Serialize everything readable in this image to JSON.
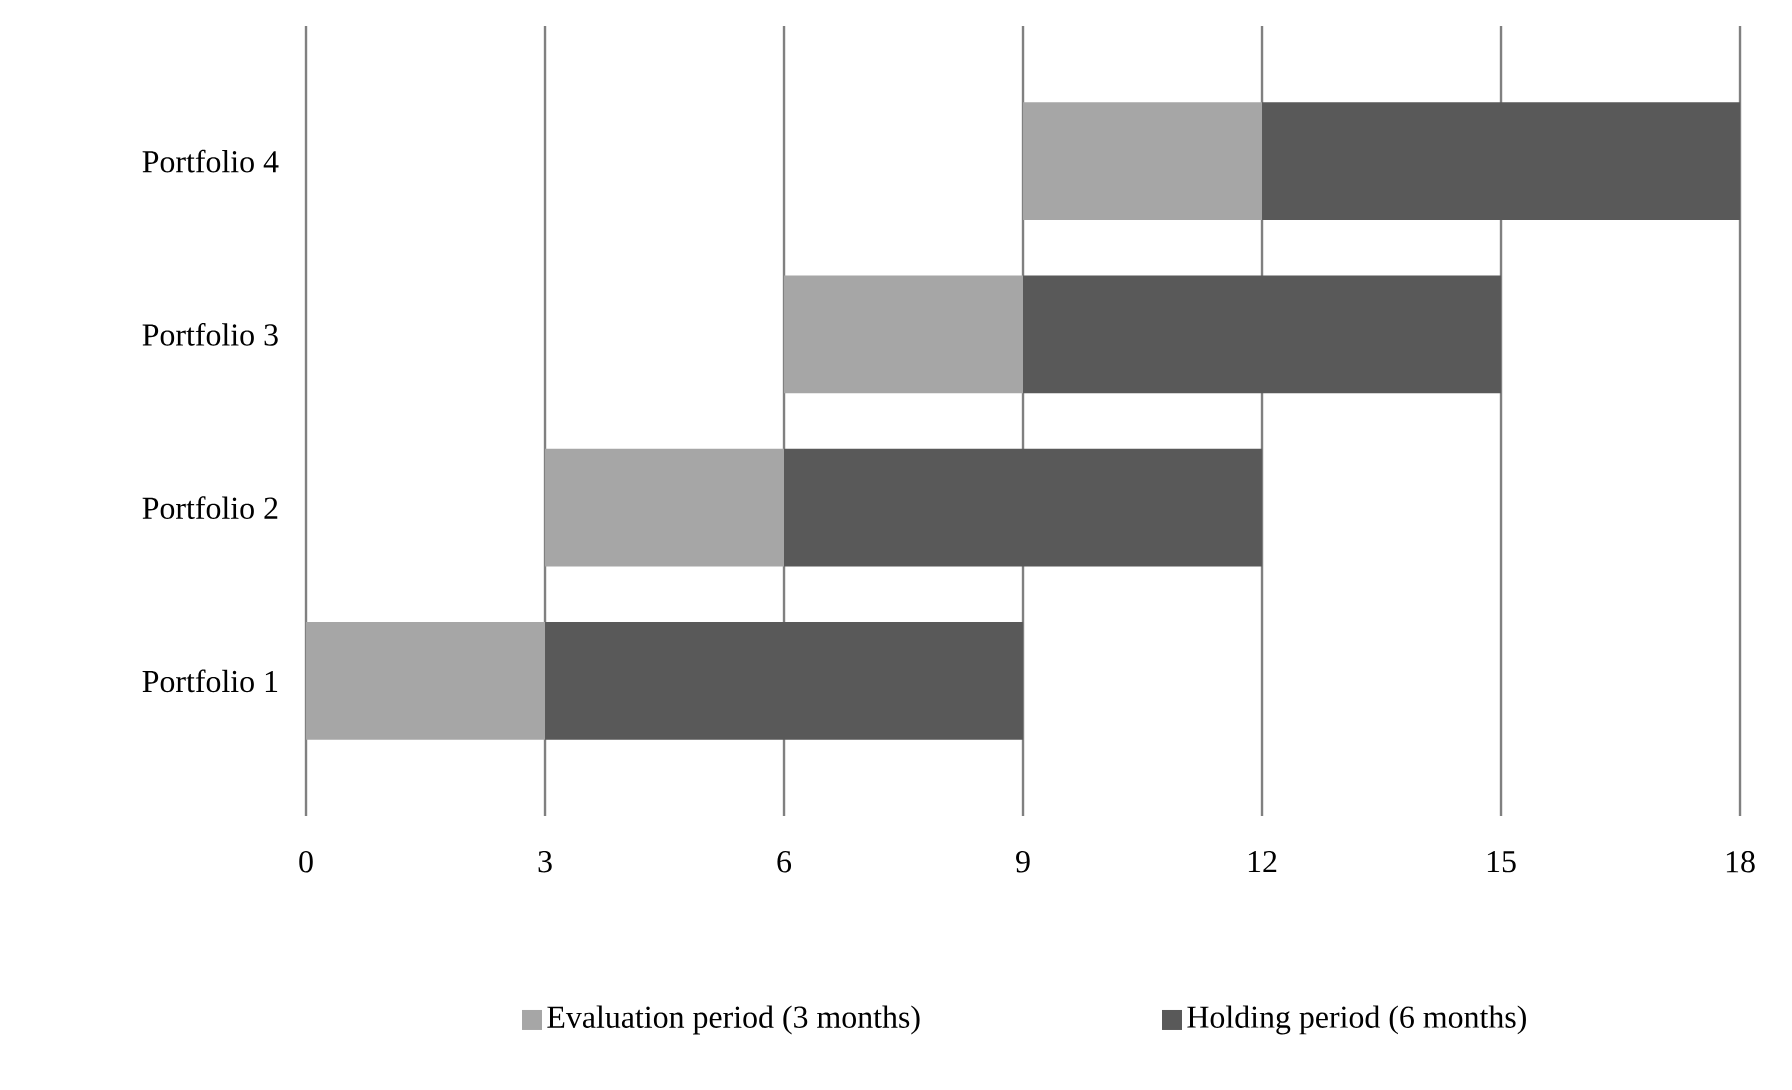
{
  "chart_data": {
    "type": "bar",
    "orientation": "horizontal",
    "categories": [
      "Portfolio 4",
      "Portfolio 3",
      "Portfolio 2",
      "Portfolio 1"
    ],
    "series": [
      {
        "name": "Evaluation period (3 months)",
        "color": "#a6a6a6",
        "base": [
          9,
          6,
          3,
          0
        ],
        "values": [
          3,
          3,
          3,
          3
        ]
      },
      {
        "name": "Holding period (6 months)",
        "color": "#595959",
        "base": [
          12,
          9,
          6,
          3
        ],
        "values": [
          6,
          6,
          6,
          6
        ]
      }
    ],
    "xlim": [
      0,
      18
    ],
    "xticks": [
      0,
      3,
      6,
      9,
      12,
      15,
      18
    ],
    "grid": "x",
    "legend": "bottom"
  }
}
